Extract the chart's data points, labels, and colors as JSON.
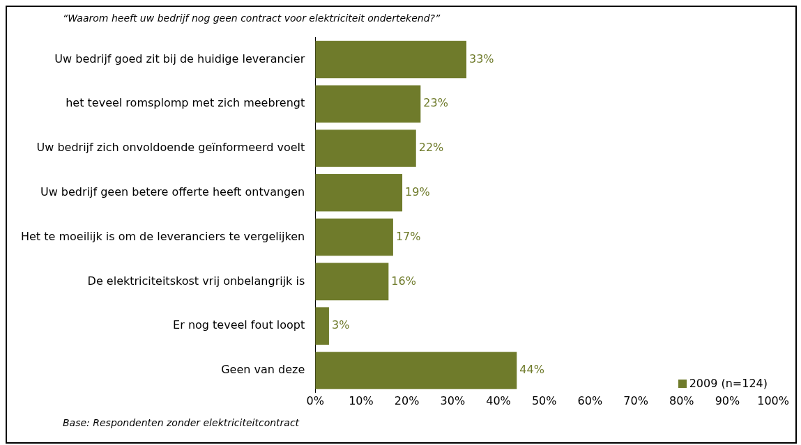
{
  "chart_data": {
    "type": "bar",
    "orientation": "horizontal",
    "subtitle": "“Waarom heeft uw bedrijf nog geen contract voor elektriciteit ondertekend?”",
    "categories": [
      "Uw bedrijf goed zit bij de huidige leverancier",
      "het teveel romsplomp met zich meebrengt",
      "Uw bedrijf zich onvoldoende geïnformeerd voelt",
      "Uw bedrijf geen betere offerte heeft ontvangen",
      "Het te moeilijk is om de leveranciers te vergelijken",
      "De elektriciteitskost vrij onbelangrijk is",
      "Er nog teveel fout loopt",
      "Geen van deze"
    ],
    "series": [
      {
        "name": "2009 (n=124)",
        "color": "#6f7b2b",
        "values": [
          33,
          23,
          22,
          19,
          17,
          16,
          3,
          44
        ],
        "value_labels": [
          "33%",
          "23%",
          "22%",
          "19%",
          "17%",
          "16%",
          "3%",
          "44%"
        ]
      }
    ],
    "xlim": [
      0,
      100
    ],
    "xticks": [
      {
        "value": 0,
        "label": "0%"
      },
      {
        "value": 10,
        "label": "10%"
      },
      {
        "value": 20,
        "label": "20%"
      },
      {
        "value": 30,
        "label": "30%"
      },
      {
        "value": 40,
        "label": "40%"
      },
      {
        "value": 50,
        "label": "50%"
      },
      {
        "value": 60,
        "label": "60%"
      },
      {
        "value": 70,
        "label": "70%"
      },
      {
        "value": 80,
        "label": "80%"
      },
      {
        "value": 90,
        "label": "90%"
      },
      {
        "value": 100,
        "label": "100%"
      }
    ],
    "grid": false,
    "legend": "bottom right",
    "annotations": [
      "Base: Respondenten zonder elektriciteitcontract"
    ]
  }
}
